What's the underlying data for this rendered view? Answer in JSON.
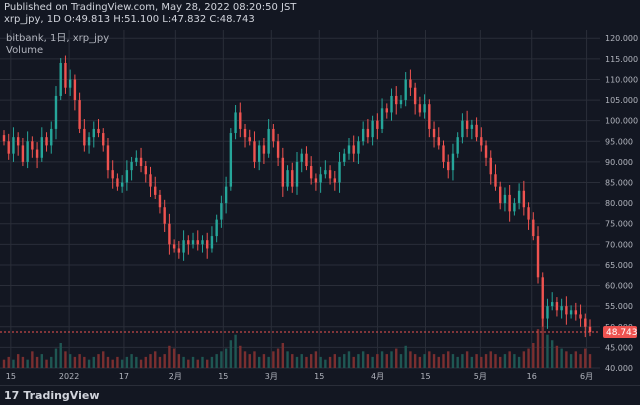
{
  "header": {
    "published": "Published on TradingView.com, May 28, 2022 08:20:50 JST",
    "ohlc": "xrp_jpy, 1D O:49.813 H:51.100 L:47.832 C:48.743"
  },
  "legend": {
    "series_title": "bitbank, 1日, xrp_jpy",
    "volume_label": "Volume"
  },
  "footer": {
    "brand": "TradingView",
    "logo_glyph": "17"
  },
  "chart_data": {
    "type": "candlestick",
    "symbol": "xrp_jpy",
    "exchange": "bitbank",
    "interval": "1日",
    "last_price": 48.743,
    "last_price_label": "48.743",
    "ylim": [
      40,
      122
    ],
    "y_ticks": [
      40,
      45,
      50,
      55,
      60,
      65,
      70,
      75,
      80,
      85,
      90,
      95,
      100,
      105,
      110,
      115,
      120
    ],
    "y_tick_labels": [
      "40.000",
      "45.000",
      "50.000",
      "55.000",
      "60.000",
      "65.000",
      "70.000",
      "75.000",
      "80.000",
      "85.000",
      "90.000",
      "95.000",
      "100.000",
      "105.000",
      "110.000",
      "115.000",
      "120.000"
    ],
    "x_ticks": [
      {
        "label": "15",
        "day": 2
      },
      {
        "label": "2022",
        "day": 19
      },
      {
        "label": "17",
        "day": 35
      },
      {
        "label": "2月",
        "day": 50
      },
      {
        "label": "15",
        "day": 64
      },
      {
        "label": "3月",
        "day": 78
      },
      {
        "label": "15",
        "day": 92
      },
      {
        "label": "4月",
        "day": 109
      },
      {
        "label": "15",
        "day": 123
      },
      {
        "label": "5月",
        "day": 139
      },
      {
        "label": "16",
        "day": 154
      },
      {
        "label": "6月",
        "day": 170
      }
    ],
    "colors": {
      "background": "#131722",
      "grid": "#2a2e39",
      "up": "#26a69a",
      "down": "#ef5350",
      "up_volume": "#1f5753",
      "down_volume": "#7a2f30",
      "text": "#b2b5be",
      "price_line": "#ef5350"
    },
    "closes": [
      95,
      92,
      96,
      94,
      90,
      95,
      93,
      91,
      96,
      94,
      98,
      106,
      114,
      108,
      110,
      105,
      98,
      94,
      96,
      98,
      97,
      94,
      88,
      86,
      84,
      85,
      88,
      90,
      91,
      89,
      87,
      84,
      82,
      79,
      75,
      70,
      69,
      68,
      71,
      70,
      71,
      70,
      71,
      69,
      72,
      76,
      80,
      84,
      97,
      102,
      98,
      96,
      95,
      90,
      94,
      92,
      98,
      95,
      91,
      84,
      88,
      84,
      90,
      92,
      89,
      86,
      85,
      87,
      88,
      86,
      85,
      90,
      92,
      94,
      92,
      95,
      98,
      96,
      100,
      98,
      103,
      102,
      106,
      104,
      105,
      110,
      108,
      104,
      102,
      104,
      98,
      96,
      94,
      90,
      88,
      92,
      96,
      100,
      98,
      99,
      96,
      94,
      91,
      87,
      84,
      80,
      82,
      78,
      80,
      83,
      79,
      76,
      72,
      62,
      52,
      55,
      56,
      54,
      55,
      53,
      54,
      53,
      52,
      50,
      48.743
    ],
    "volumes": [
      3,
      4,
      3,
      5,
      4,
      3,
      6,
      4,
      5,
      3,
      4,
      7,
      9,
      6,
      5,
      4,
      5,
      4,
      3,
      4,
      5,
      6,
      4,
      3,
      4,
      3,
      4,
      5,
      4,
      3,
      4,
      5,
      6,
      4,
      5,
      8,
      7,
      5,
      4,
      3,
      4,
      3,
      4,
      3,
      4,
      5,
      6,
      7,
      10,
      12,
      8,
      6,
      5,
      6,
      4,
      5,
      4,
      6,
      7,
      9,
      6,
      5,
      4,
      5,
      4,
      5,
      6,
      4,
      3,
      4,
      5,
      4,
      5,
      6,
      4,
      5,
      6,
      5,
      4,
      5,
      6,
      5,
      6,
      7,
      5,
      8,
      6,
      5,
      4,
      5,
      6,
      5,
      4,
      5,
      6,
      5,
      4,
      5,
      6,
      4,
      5,
      4,
      5,
      6,
      5,
      4,
      5,
      6,
      5,
      4,
      6,
      7,
      9,
      14,
      18,
      12,
      10,
      8,
      7,
      6,
      5,
      6,
      5,
      7,
      5
    ]
  }
}
